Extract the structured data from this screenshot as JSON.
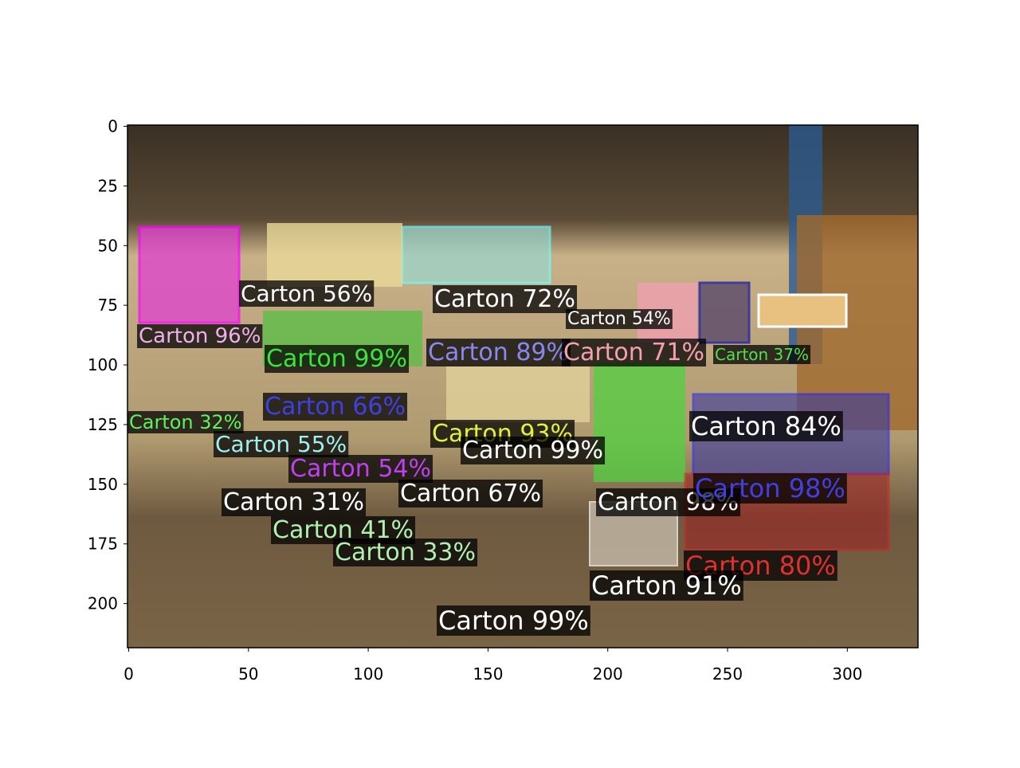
{
  "chart_data": {
    "type": "image",
    "xlim": [
      -0.5,
      329.5
    ],
    "ylim": [
      218.5,
      -0.5
    ],
    "xticks": [
      0,
      50,
      100,
      150,
      200,
      250,
      300
    ],
    "yticks": [
      0,
      25,
      50,
      75,
      100,
      125,
      150,
      175,
      200
    ],
    "detections": [
      {
        "label": "Carton 56%",
        "color": "#ffffff"
      },
      {
        "label": "Carton 96%",
        "color": "#f0b0f0"
      },
      {
        "label": "Carton 99%",
        "color": "#40e040"
      },
      {
        "label": "Carton 72%",
        "color": "#ffffff"
      },
      {
        "label": "Carton 89%",
        "color": "#8888ee"
      },
      {
        "label": "Carton 71%",
        "color": "#f4a0b0"
      },
      {
        "label": "Carton 54%",
        "color": "#ffffff"
      },
      {
        "label": "Carton 37%",
        "color": "#50e050"
      },
      {
        "label": "Carton 66%",
        "color": "#4040e0"
      },
      {
        "label": "Carton 32%",
        "color": "#60f060"
      },
      {
        "label": "Carton 55%",
        "color": "#a0f0f0"
      },
      {
        "label": "Carton 93%",
        "color": "#e0f040"
      },
      {
        "label": "Carton 99%",
        "color": "#ffffff"
      },
      {
        "label": "Carton 84%",
        "color": "#ffffff"
      },
      {
        "label": "Carton 54%",
        "color": "#c040f0"
      },
      {
        "label": "Carton 31%",
        "color": "#ffffff"
      },
      {
        "label": "Carton 67%",
        "color": "#ffffff"
      },
      {
        "label": "Carton 98%",
        "color": "#ffffff"
      },
      {
        "label": "Carton 98%",
        "color": "#4040e0"
      },
      {
        "label": "Carton 41%",
        "color": "#b0f0b0"
      },
      {
        "label": "Carton 33%",
        "color": "#b0f0b0"
      },
      {
        "label": "Carton 80%",
        "color": "#e03030"
      },
      {
        "label": "Carton 91%",
        "color": "#ffffff"
      },
      {
        "label": "Carton 99%",
        "color": "#ffffff"
      }
    ]
  }
}
